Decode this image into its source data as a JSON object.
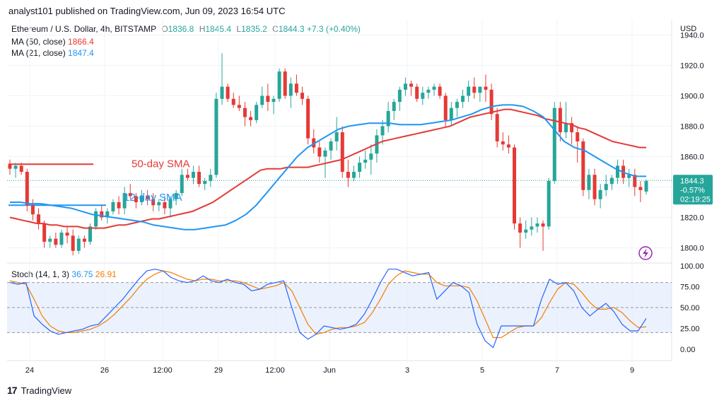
{
  "header": {
    "published": "analyst101 published on TradingView.com, Jun 09, 2023 16:54 UTC"
  },
  "legend": {
    "symbol": "Ethereum / U.S. Dollar, 4h, BITSTAMP",
    "open_label": "O",
    "open": "1836.8",
    "high_label": "H",
    "high": "1845.4",
    "low_label": "L",
    "low": "1835.2",
    "close_label": "C",
    "close": "1844.3",
    "change": "+7.3 (+0.40%)",
    "ma50_label": "MA (50, close)",
    "ma50_value": "1866.4",
    "ma21_label": "MA (21, close)",
    "ma21_value": "1847.4",
    "stoch_label": "Stoch (14, 1, 3)",
    "stoch_k": "36.75",
    "stoch_d": "26.91"
  },
  "price_scale": {
    "currency": "USD",
    "ticks": [
      "1940.0",
      "1920.0",
      "1900.0",
      "1880.0",
      "1860.0",
      "1840.0",
      "1820.0",
      "1800.0"
    ],
    "last_price": "1844.3",
    "last_change": "-0.57%",
    "countdown": "02:19:25"
  },
  "stoch_scale": {
    "ticks": [
      "100.00",
      "75.00",
      "50.00",
      "25.00",
      "0.00"
    ]
  },
  "time_axis": {
    "labels": [
      "24",
      "26",
      "12:00",
      "29",
      "12:00",
      "Jun",
      "3",
      "5",
      "7",
      "9"
    ]
  },
  "annotations": {
    "sma50": "50-day SMA",
    "sma12": "12-day SMA"
  },
  "colors": {
    "up": "#26a69a",
    "down": "#e53935",
    "ma50": "#e53935",
    "ma21": "#2196f3",
    "stochK": "#2962ff",
    "stochD": "#f57c00",
    "band": "#dbe8fb"
  },
  "footer": {
    "brand": "TradingView"
  },
  "chart_data": {
    "type": "candlestick",
    "title": "Ethereum / U.S. Dollar, 4h, BITSTAMP",
    "price_range": [
      1790,
      1950
    ],
    "candles": [
      [
        1855,
        1858,
        1848,
        1852
      ],
      [
        1852,
        1856,
        1846,
        1854
      ],
      [
        1854,
        1856,
        1848,
        1850
      ],
      [
        1850,
        1852,
        1824,
        1828
      ],
      [
        1828,
        1832,
        1818,
        1822
      ],
      [
        1822,
        1826,
        1812,
        1816
      ],
      [
        1816,
        1818,
        1800,
        1804
      ],
      [
        1804,
        1808,
        1800,
        1806
      ],
      [
        1806,
        1810,
        1800,
        1802
      ],
      [
        1802,
        1812,
        1800,
        1810
      ],
      [
        1810,
        1814,
        1803,
        1808
      ],
      [
        1808,
        1812,
        1795,
        1798
      ],
      [
        1798,
        1808,
        1796,
        1806
      ],
      [
        1806,
        1808,
        1800,
        1804
      ],
      [
        1804,
        1816,
        1802,
        1814
      ],
      [
        1814,
        1826,
        1812,
        1824
      ],
      [
        1824,
        1828,
        1818,
        1820
      ],
      [
        1820,
        1826,
        1816,
        1824
      ],
      [
        1824,
        1832,
        1822,
        1830
      ],
      [
        1830,
        1834,
        1822,
        1826
      ],
      [
        1826,
        1840,
        1822,
        1836
      ],
      [
        1836,
        1842,
        1832,
        1834
      ],
      [
        1834,
        1836,
        1826,
        1830
      ],
      [
        1830,
        1838,
        1828,
        1834
      ],
      [
        1834,
        1838,
        1828,
        1832
      ],
      [
        1832,
        1836,
        1824,
        1828
      ],
      [
        1828,
        1832,
        1824,
        1830
      ],
      [
        1830,
        1834,
        1822,
        1826
      ],
      [
        1826,
        1834,
        1820,
        1832
      ],
      [
        1832,
        1838,
        1828,
        1836
      ],
      [
        1836,
        1852,
        1834,
        1848
      ],
      [
        1848,
        1852,
        1844,
        1846
      ],
      [
        1846,
        1854,
        1842,
        1850
      ],
      [
        1850,
        1854,
        1840,
        1842
      ],
      [
        1842,
        1846,
        1838,
        1844
      ],
      [
        1844,
        1852,
        1840,
        1848
      ],
      [
        1848,
        1902,
        1846,
        1898
      ],
      [
        1898,
        1928,
        1894,
        1906
      ],
      [
        1906,
        1908,
        1896,
        1898
      ],
      [
        1898,
        1902,
        1892,
        1894
      ],
      [
        1894,
        1900,
        1890,
        1892
      ],
      [
        1892,
        1896,
        1880,
        1886
      ],
      [
        1886,
        1890,
        1880,
        1884
      ],
      [
        1884,
        1896,
        1882,
        1894
      ],
      [
        1894,
        1906,
        1892,
        1900
      ],
      [
        1900,
        1908,
        1890,
        1896
      ],
      [
        1896,
        1900,
        1888,
        1898
      ],
      [
        1898,
        1918,
        1896,
        1916
      ],
      [
        1916,
        1918,
        1898,
        1900
      ],
      [
        1900,
        1912,
        1892,
        1908
      ],
      [
        1908,
        1914,
        1900,
        1902
      ],
      [
        1902,
        1906,
        1894,
        1898
      ],
      [
        1898,
        1900,
        1868,
        1872
      ],
      [
        1872,
        1878,
        1862,
        1866
      ],
      [
        1866,
        1870,
        1856,
        1860
      ],
      [
        1860,
        1866,
        1846,
        1864
      ],
      [
        1864,
        1872,
        1858,
        1870
      ],
      [
        1870,
        1886,
        1864,
        1876
      ],
      [
        1876,
        1880,
        1846,
        1850
      ],
      [
        1850,
        1858,
        1840,
        1846
      ],
      [
        1846,
        1854,
        1844,
        1850
      ],
      [
        1850,
        1860,
        1846,
        1856
      ],
      [
        1856,
        1864,
        1852,
        1858
      ],
      [
        1858,
        1868,
        1848,
        1862
      ],
      [
        1862,
        1878,
        1856,
        1874
      ],
      [
        1874,
        1884,
        1868,
        1880
      ],
      [
        1880,
        1896,
        1876,
        1890
      ],
      [
        1890,
        1898,
        1884,
        1896
      ],
      [
        1896,
        1906,
        1890,
        1904
      ],
      [
        1904,
        1912,
        1900,
        1908
      ],
      [
        1908,
        1910,
        1900,
        1906
      ],
      [
        1906,
        1908,
        1896,
        1898
      ],
      [
        1898,
        1906,
        1894,
        1902
      ],
      [
        1902,
        1906,
        1898,
        1904
      ],
      [
        1904,
        1908,
        1900,
        1906
      ],
      [
        1906,
        1908,
        1898,
        1900
      ],
      [
        1900,
        1902,
        1880,
        1884
      ],
      [
        1884,
        1896,
        1880,
        1892
      ],
      [
        1892,
        1898,
        1886,
        1896
      ],
      [
        1896,
        1904,
        1892,
        1900
      ],
      [
        1900,
        1910,
        1896,
        1906
      ],
      [
        1906,
        1912,
        1898,
        1902
      ],
      [
        1902,
        1906,
        1896,
        1906
      ],
      [
        1906,
        1914,
        1896,
        1904
      ],
      [
        1904,
        1908,
        1884,
        1888
      ],
      [
        1888,
        1892,
        1866,
        1870
      ],
      [
        1870,
        1876,
        1864,
        1868
      ],
      [
        1868,
        1874,
        1862,
        1866
      ],
      [
        1866,
        1868,
        1812,
        1816
      ],
      [
        1816,
        1820,
        1800,
        1810
      ],
      [
        1810,
        1818,
        1806,
        1812
      ],
      [
        1812,
        1820,
        1808,
        1814
      ],
      [
        1814,
        1820,
        1810,
        1816
      ],
      [
        1816,
        1818,
        1798,
        1814
      ],
      [
        1814,
        1846,
        1812,
        1844
      ],
      [
        1844,
        1896,
        1842,
        1892
      ],
      [
        1892,
        1896,
        1870,
        1876
      ],
      [
        1876,
        1896,
        1872,
        1882
      ],
      [
        1882,
        1886,
        1868,
        1876
      ],
      [
        1876,
        1880,
        1856,
        1870
      ],
      [
        1870,
        1872,
        1834,
        1838
      ],
      [
        1838,
        1852,
        1832,
        1848
      ],
      [
        1848,
        1852,
        1828,
        1832
      ],
      [
        1832,
        1842,
        1826,
        1838
      ],
      [
        1838,
        1848,
        1834,
        1842
      ],
      [
        1842,
        1848,
        1838,
        1846
      ],
      [
        1846,
        1858,
        1842,
        1854
      ],
      [
        1854,
        1858,
        1842,
        1846
      ],
      [
        1846,
        1852,
        1840,
        1848
      ],
      [
        1848,
        1852,
        1834,
        1840
      ],
      [
        1840,
        1844,
        1830,
        1838
      ],
      [
        1837,
        1845,
        1835,
        1844
      ]
    ],
    "ma50": [
      1820,
      1819,
      1818,
      1817,
      1816,
      1816,
      1815,
      1815,
      1814,
      1814,
      1814,
      1813,
      1813,
      1813,
      1813,
      1814,
      1815,
      1815,
      1816,
      1817,
      1818,
      1819,
      1819,
      1820,
      1821,
      1822,
      1823,
      1824,
      1826,
      1828,
      1830,
      1833,
      1836,
      1839,
      1842,
      1845,
      1848,
      1851,
      1852,
      1852,
      1852,
      1853,
      1853,
      1853,
      1853,
      1854,
      1855,
      1856,
      1857,
      1858,
      1860,
      1862,
      1864,
      1866,
      1868,
      1870,
      1871,
      1872,
      1873,
      1874,
      1875,
      1876,
      1877,
      1878,
      1879,
      1880,
      1882,
      1884,
      1886,
      1887,
      1888,
      1889,
      1890,
      1891,
      1891,
      1890,
      1889,
      1888,
      1887,
      1885,
      1884,
      1883,
      1882,
      1881,
      1879,
      1878,
      1876,
      1874,
      1872,
      1870,
      1869,
      1868,
      1867,
      1866,
      1866
    ],
    "ma21": [
      1830,
      1830,
      1829,
      1829,
      1828,
      1827,
      1826,
      1824,
      1822,
      1821,
      1820,
      1819,
      1818,
      1817,
      1815,
      1814,
      1813,
      1812,
      1812,
      1813,
      1814,
      1815,
      1818,
      1822,
      1828,
      1836,
      1844,
      1852,
      1860,
      1866,
      1870,
      1874,
      1878,
      1880,
      1881,
      1882,
      1882,
      1882,
      1881,
      1881,
      1881,
      1882,
      1883,
      1884,
      1886,
      1888,
      1891,
      1893,
      1894,
      1894,
      1893,
      1890,
      1886,
      1878,
      1870,
      1866,
      1864,
      1860,
      1856,
      1852,
      1849,
      1847,
      1847
    ],
    "stoch_k": [
      80,
      78,
      80,
      40,
      30,
      22,
      18,
      20,
      22,
      24,
      28,
      30,
      40,
      50,
      60,
      72,
      84,
      94,
      96,
      94,
      86,
      82,
      80,
      82,
      88,
      82,
      80,
      84,
      80,
      78,
      70,
      72,
      78,
      80,
      82,
      50,
      20,
      12,
      18,
      28,
      26,
      24,
      26,
      30,
      42,
      60,
      80,
      96,
      96,
      92,
      88,
      90,
      92,
      60,
      70,
      80,
      76,
      68,
      30,
      10,
      2,
      28,
      28,
      28,
      28,
      28,
      60,
      84,
      78,
      80,
      70,
      50,
      40,
      48,
      55,
      45,
      30,
      22,
      22,
      37
    ],
    "stoch_d": [
      82,
      80,
      78,
      60,
      40,
      28,
      22,
      20,
      20,
      22,
      24,
      28,
      34,
      42,
      52,
      62,
      74,
      84,
      90,
      94,
      92,
      88,
      84,
      82,
      84,
      84,
      82,
      82,
      82,
      80,
      76,
      72,
      74,
      76,
      80,
      70,
      50,
      30,
      18,
      20,
      24,
      26,
      26,
      28,
      32,
      44,
      60,
      78,
      88,
      94,
      92,
      90,
      90,
      80,
      76,
      76,
      76,
      74,
      58,
      36,
      14,
      14,
      20,
      26,
      28,
      28,
      38,
      56,
      72,
      80,
      78,
      68,
      56,
      48,
      48,
      50,
      44,
      34,
      26,
      27
    ]
  }
}
